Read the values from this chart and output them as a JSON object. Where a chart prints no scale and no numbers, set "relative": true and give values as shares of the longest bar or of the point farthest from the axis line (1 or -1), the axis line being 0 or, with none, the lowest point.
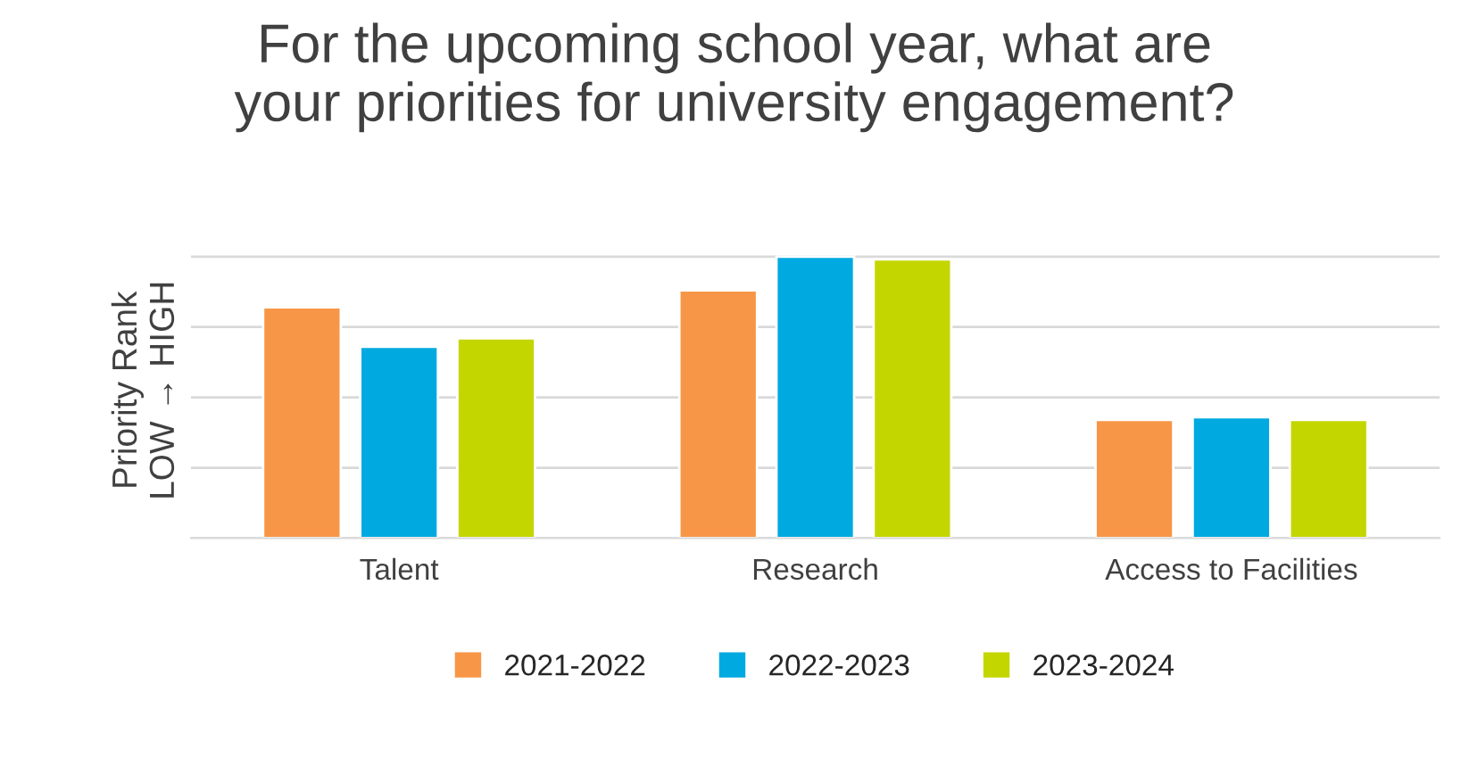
{
  "chart_data": {
    "type": "bar",
    "title": "For the upcoming school year, what are\nyour priorities for university engagement?",
    "ylabel": "Priority Rank\nLOW → HIGH",
    "categories": [
      "Talent",
      "Research",
      "Access to Facilities"
    ],
    "series": [
      {
        "name": "2021-2022",
        "color": "#f79646",
        "values": [
          0.82,
          0.88,
          0.42
        ]
      },
      {
        "name": "2022-2023",
        "color": "#00a9e0",
        "values": [
          0.68,
          1,
          0.43
        ]
      },
      {
        "name": "2023-2024",
        "color": "#c4d600",
        "values": [
          0.71,
          0.99,
          0.42
        ]
      }
    ],
    "relative": true,
    "grid": "y",
    "legend": "bottom"
  }
}
